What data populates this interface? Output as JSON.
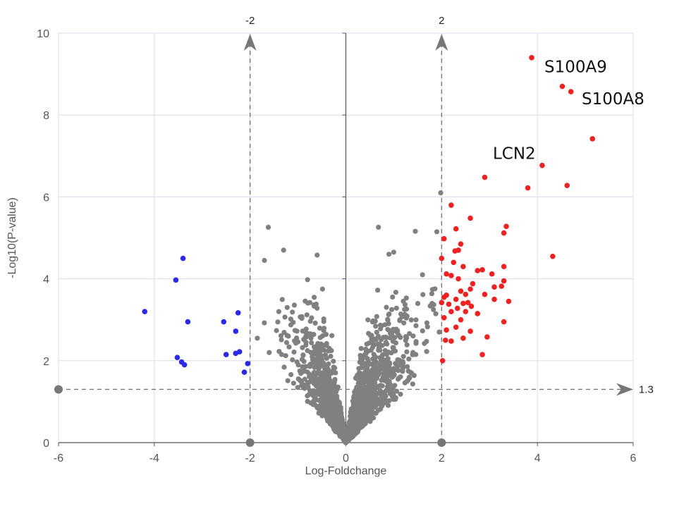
{
  "chart_data": {
    "type": "scatter",
    "title": "",
    "xlabel": "Log-Foldchange",
    "ylabel": "-Log10(P-value)",
    "xlim": [
      -6,
      6
    ],
    "ylim": [
      0,
      10
    ],
    "x_ticks": [
      -6,
      -4,
      -2,
      0,
      2,
      4,
      6
    ],
    "y_ticks": [
      0,
      2,
      4,
      6,
      8,
      10
    ],
    "grid": true,
    "reference_lines": {
      "vertical": [
        {
          "x": -2,
          "label": "-2"
        },
        {
          "x": 2,
          "label": "2"
        }
      ],
      "horizontal": [
        {
          "y": 1.3,
          "label": "1.3"
        }
      ]
    },
    "colors": {
      "up": "#ee2222",
      "down": "#2a2ae6",
      "not_significant": "#808080",
      "ref_line": "#777777",
      "grid": "#dcdcec"
    },
    "series": [
      {
        "key": "up",
        "points": [
          [
            3.88,
            9.4
          ],
          [
            4.52,
            8.7
          ],
          [
            4.7,
            8.57
          ],
          [
            5.15,
            7.42
          ],
          [
            4.1,
            6.77
          ],
          [
            2.9,
            6.48
          ],
          [
            3.8,
            6.22
          ],
          [
            4.62,
            6.28
          ],
          [
            2.2,
            5.8
          ],
          [
            2.6,
            5.48
          ],
          [
            3.35,
            5.28
          ],
          [
            2.3,
            5.22
          ],
          [
            3.3,
            5.12
          ],
          [
            2.05,
            4.98
          ],
          [
            2.4,
            4.85
          ],
          [
            2.35,
            4.7
          ],
          [
            2.28,
            4.68
          ],
          [
            2.0,
            4.5
          ],
          [
            4.32,
            4.55
          ],
          [
            2.25,
            4.4
          ],
          [
            2.45,
            4.3
          ],
          [
            3.3,
            4.3
          ],
          [
            2.85,
            4.22
          ],
          [
            2.1,
            4.12
          ],
          [
            2.75,
            4.2
          ],
          [
            3.05,
            4.12
          ],
          [
            2.2,
            4.08
          ],
          [
            2.35,
            4.0
          ],
          [
            2.65,
            3.88
          ],
          [
            3.3,
            3.95
          ],
          [
            3.1,
            3.8
          ],
          [
            3.25,
            3.82
          ],
          [
            2.4,
            3.7
          ],
          [
            2.6,
            3.75
          ],
          [
            2.5,
            3.62
          ],
          [
            2.9,
            3.62
          ],
          [
            2.05,
            3.55
          ],
          [
            2.1,
            3.6
          ],
          [
            2.3,
            3.5
          ],
          [
            3.1,
            3.5
          ],
          [
            3.4,
            3.45
          ],
          [
            2.0,
            3.42
          ],
          [
            2.15,
            3.38
          ],
          [
            2.45,
            3.4
          ],
          [
            2.55,
            3.42
          ],
          [
            2.62,
            3.33
          ],
          [
            2.33,
            3.28
          ],
          [
            2.2,
            3.2
          ],
          [
            2.5,
            3.2
          ],
          [
            2.75,
            3.15
          ],
          [
            2.05,
            3.05
          ],
          [
            2.4,
            3.0
          ],
          [
            2.3,
            2.82
          ],
          [
            2.1,
            2.75
          ],
          [
            3.3,
            2.95
          ],
          [
            2.6,
            2.72
          ],
          [
            2.45,
            2.55
          ],
          [
            2.08,
            2.5
          ],
          [
            2.2,
            2.48
          ],
          [
            2.95,
            2.58
          ],
          [
            2.85,
            2.15
          ],
          [
            2.02,
            2.0
          ]
        ]
      },
      {
        "key": "down",
        "points": [
          [
            -3.4,
            4.5
          ],
          [
            -3.55,
            3.97
          ],
          [
            -4.2,
            3.2
          ],
          [
            -3.3,
            2.95
          ],
          [
            -2.25,
            3.17
          ],
          [
            -2.55,
            2.95
          ],
          [
            -2.3,
            2.72
          ],
          [
            -3.52,
            2.08
          ],
          [
            -3.43,
            1.97
          ],
          [
            -3.37,
            1.9
          ],
          [
            -2.5,
            2.15
          ],
          [
            -2.3,
            2.18
          ],
          [
            -2.22,
            2.22
          ],
          [
            -2.05,
            1.93
          ],
          [
            -2.12,
            1.72
          ]
        ]
      }
    ],
    "annotations": [
      {
        "text": "S100A9",
        "x": 4.52,
        "y": 8.7
      },
      {
        "text": "S100A8",
        "x": 4.7,
        "y": 8.57
      },
      {
        "text": "LCN2",
        "x": 4.1,
        "y": 6.77
      }
    ]
  }
}
